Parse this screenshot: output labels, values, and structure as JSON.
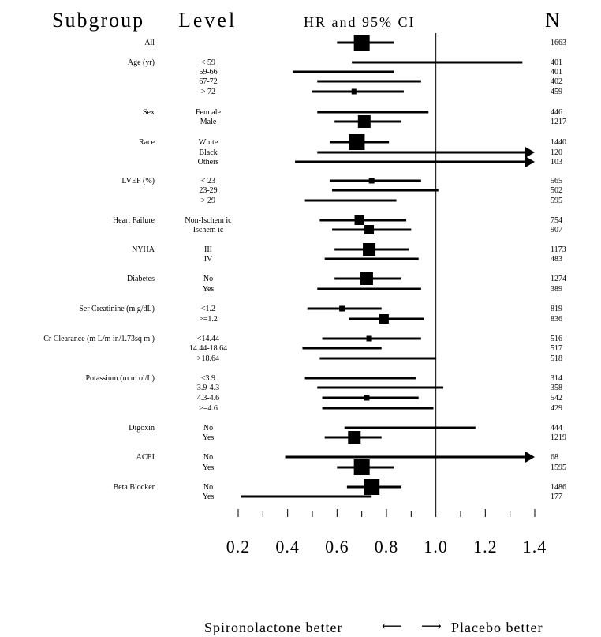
{
  "headers": {
    "subgroup": "Subgroup",
    "level": "Level",
    "hr": "HR and 95% CI",
    "n": "N"
  },
  "footer": {
    "left": "Spironolactone better",
    "left_arrow": "⟵",
    "right_arrow": "⟶",
    "right": "Placebo better"
  },
  "chart_data": {
    "type": "forest",
    "xlim": [
      0.2,
      1.4
    ],
    "reference_line": 1.0,
    "ticks": [
      "0.2",
      "0.4",
      "0.6",
      "0.8",
      "1.0",
      "1.2",
      "1.4"
    ],
    "tick_values": [
      0.2,
      0.4,
      0.6,
      0.8,
      1.0,
      1.2,
      1.4
    ],
    "rows": [
      {
        "subgroup": "All",
        "level": "",
        "hr": 0.7,
        "lo": 0.6,
        "hi": 0.83,
        "n": "1663",
        "box": "xl"
      },
      {
        "subgroup": "Age (yr)",
        "level": "< 59",
        "hr": 1.1,
        "lo": 0.66,
        "hi": 1.35,
        "n": "401",
        "box": "none"
      },
      {
        "subgroup": "",
        "level": "59-66",
        "hr": 0.64,
        "lo": 0.42,
        "hi": 0.83,
        "n": "401",
        "box": "none"
      },
      {
        "subgroup": "",
        "level": "67-72",
        "hr": 0.73,
        "lo": 0.52,
        "hi": 0.94,
        "n": "402",
        "box": "none"
      },
      {
        "subgroup": "",
        "level": "> 72",
        "hr": 0.67,
        "lo": 0.5,
        "hi": 0.87,
        "n": "459",
        "box": "s"
      },
      {
        "subgroup": "Sex",
        "level": "Fem ale",
        "hr": 0.7,
        "lo": 0.52,
        "hi": 0.97,
        "n": "446",
        "box": "none"
      },
      {
        "subgroup": "",
        "level": "Male",
        "hr": 0.71,
        "lo": 0.59,
        "hi": 0.86,
        "n": "1217",
        "box": "l"
      },
      {
        "subgroup": "Race",
        "level": "White",
        "hr": 0.68,
        "lo": 0.57,
        "hi": 0.81,
        "n": "1440",
        "box": "xl"
      },
      {
        "subgroup": "",
        "level": "Black",
        "hr": 0.75,
        "lo": 0.52,
        "hi": 1.4,
        "n": "120",
        "box": "none",
        "arrow": true
      },
      {
        "subgroup": "",
        "level": "Others",
        "hr": 0.8,
        "lo": 0.43,
        "hi": 1.4,
        "n": "103",
        "box": "none",
        "arrow": true
      },
      {
        "subgroup": "LVEF (%)",
        "level": "< 23",
        "hr": 0.74,
        "lo": 0.57,
        "hi": 0.94,
        "n": "565",
        "box": "s"
      },
      {
        "subgroup": "",
        "level": "23-29",
        "hr": 0.78,
        "lo": 0.58,
        "hi": 1.01,
        "n": "502",
        "box": "none"
      },
      {
        "subgroup": "",
        "level": "> 29",
        "hr": 0.65,
        "lo": 0.47,
        "hi": 0.84,
        "n": "595",
        "box": "none"
      },
      {
        "subgroup": "Heart Failure",
        "level": "Non-Ischem ic",
        "hr": 0.69,
        "lo": 0.53,
        "hi": 0.88,
        "n": "754",
        "box": "m"
      },
      {
        "subgroup": "",
        "level": "Ischem ic",
        "hr": 0.73,
        "lo": 0.58,
        "hi": 0.9,
        "n": "907",
        "box": "m"
      },
      {
        "subgroup": "NYHA",
        "level": "III",
        "hr": 0.73,
        "lo": 0.59,
        "hi": 0.89,
        "n": "1173",
        "box": "l"
      },
      {
        "subgroup": "",
        "level": "IV",
        "hr": 0.72,
        "lo": 0.55,
        "hi": 0.93,
        "n": "483",
        "box": "none"
      },
      {
        "subgroup": "Diabetes",
        "level": "No",
        "hr": 0.72,
        "lo": 0.59,
        "hi": 0.86,
        "n": "1274",
        "box": "l"
      },
      {
        "subgroup": "",
        "level": "Yes",
        "hr": 0.66,
        "lo": 0.52,
        "hi": 0.94,
        "n": "389",
        "box": "none"
      },
      {
        "subgroup": "Ser Creatinine (m g/dL)",
        "level": "<1.2",
        "hr": 0.62,
        "lo": 0.48,
        "hi": 0.78,
        "n": "819",
        "box": "s"
      },
      {
        "subgroup": "",
        "level": ">=1.2",
        "hr": 0.79,
        "lo": 0.65,
        "hi": 0.95,
        "n": "836",
        "box": "m"
      },
      {
        "subgroup": "Cr Clearance (m L/m in/1.73sq m )",
        "level": "<14.44",
        "hr": 0.73,
        "lo": 0.54,
        "hi": 0.94,
        "n": "516",
        "box": "s"
      },
      {
        "subgroup": "",
        "level": "14.44-18.64",
        "hr": 0.62,
        "lo": 0.46,
        "hi": 0.78,
        "n": "517",
        "box": "none"
      },
      {
        "subgroup": "",
        "level": ">18.64",
        "hr": 0.75,
        "lo": 0.53,
        "hi": 1.0,
        "n": "518",
        "box": "none"
      },
      {
        "subgroup": "Potassium (m m ol/L)",
        "level": "<3.9",
        "hr": 0.64,
        "lo": 0.47,
        "hi": 0.92,
        "n": "314",
        "box": "none"
      },
      {
        "subgroup": "",
        "level": "3.9-4.3",
        "hr": 0.72,
        "lo": 0.52,
        "hi": 1.03,
        "n": "358",
        "box": "none"
      },
      {
        "subgroup": "",
        "level": "4.3-4.6",
        "hr": 0.72,
        "lo": 0.54,
        "hi": 0.93,
        "n": "542",
        "box": "s"
      },
      {
        "subgroup": "",
        "level": ">=4.6",
        "hr": 0.75,
        "lo": 0.54,
        "hi": 0.99,
        "n": "429",
        "box": "none"
      },
      {
        "subgroup": "Digoxin",
        "level": "No",
        "hr": 0.8,
        "lo": 0.63,
        "hi": 1.16,
        "n": "444",
        "box": "none"
      },
      {
        "subgroup": "",
        "level": "Yes",
        "hr": 0.67,
        "lo": 0.55,
        "hi": 0.78,
        "n": "1219",
        "box": "l"
      },
      {
        "subgroup": "ACEI",
        "level": "No",
        "hr": 0.8,
        "lo": 0.39,
        "hi": 1.4,
        "n": "68",
        "box": "none",
        "arrow": true
      },
      {
        "subgroup": "",
        "level": "Yes",
        "hr": 0.7,
        "lo": 0.6,
        "hi": 0.83,
        "n": "1595",
        "box": "xl"
      },
      {
        "subgroup": "Beta Blocker",
        "level": "No",
        "hr": 0.74,
        "lo": 0.64,
        "hi": 0.86,
        "n": "1486",
        "box": "xl"
      },
      {
        "subgroup": "",
        "level": "Yes",
        "hr": 0.5,
        "lo": 0.21,
        "hi": 0.74,
        "n": "177",
        "box": "none"
      }
    ]
  }
}
